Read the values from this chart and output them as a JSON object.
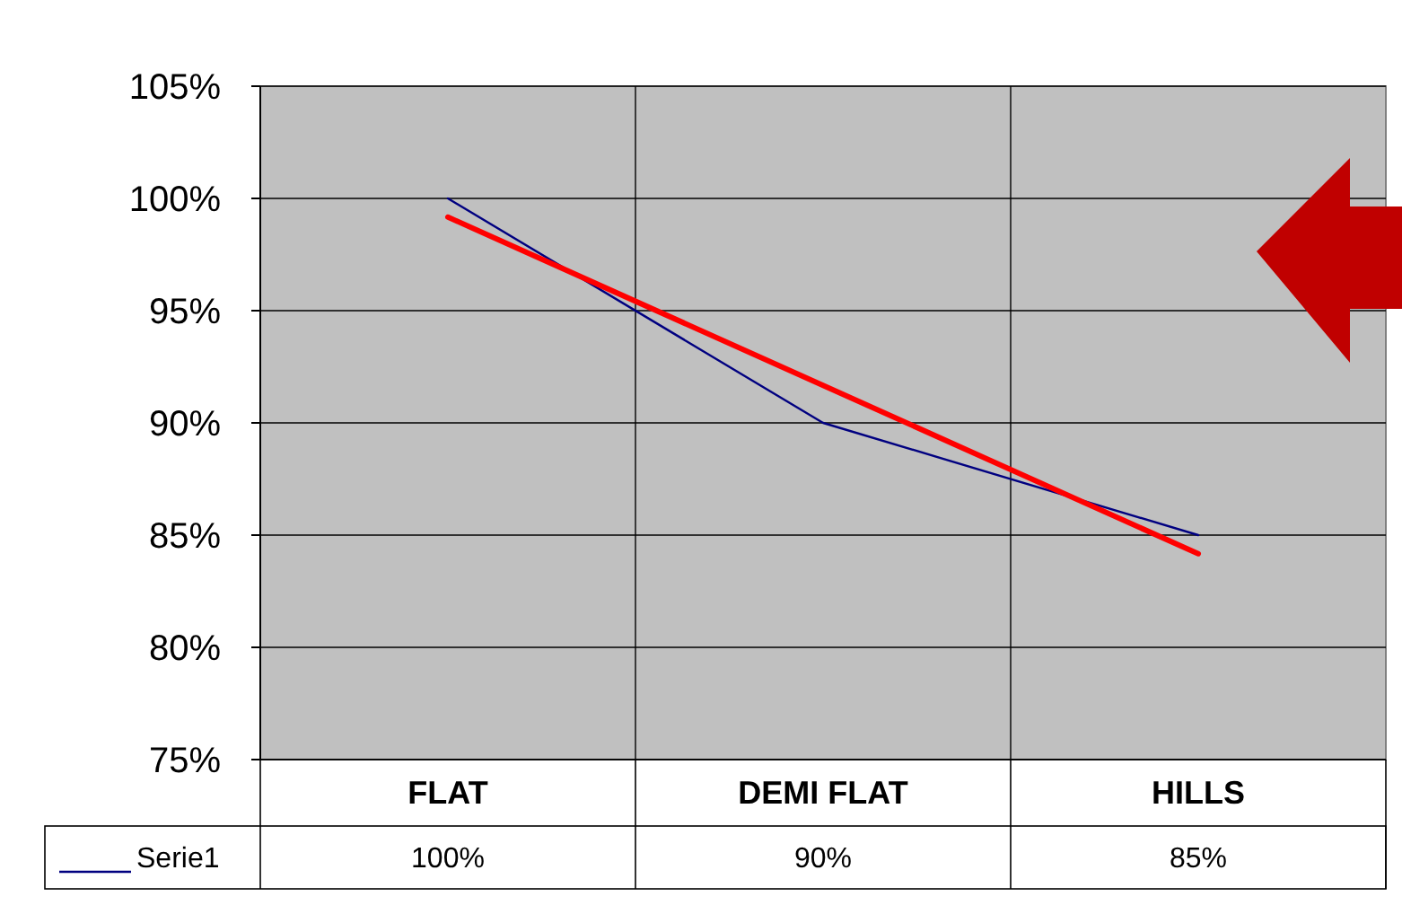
{
  "chart_data": {
    "type": "line",
    "categories": [
      "FLAT",
      "DEMI FLAT",
      "HILLS"
    ],
    "series": [
      {
        "name": "Serie1",
        "color": "#000080",
        "values": [
          100,
          90,
          85
        ]
      },
      {
        "type": "line",
        "color": "#ff0000",
        "values": [
          99.17,
          91.67,
          84.17
        ]
      }
    ],
    "ylim": [
      75,
      105
    ],
    "yticks": [
      {
        "value": 75,
        "label": "75%"
      },
      {
        "value": 80,
        "label": "80%"
      },
      {
        "value": 85,
        "label": "85%"
      },
      {
        "value": 90,
        "label": "90%"
      },
      {
        "value": 95,
        "label": "95%"
      },
      {
        "value": 100,
        "label": "100%"
      },
      {
        "value": 105,
        "label": "105%"
      }
    ],
    "value_labels": [
      "100%",
      "90%",
      "85%"
    ],
    "grid": true,
    "legend": "bottom",
    "line_style": "solid"
  }
}
